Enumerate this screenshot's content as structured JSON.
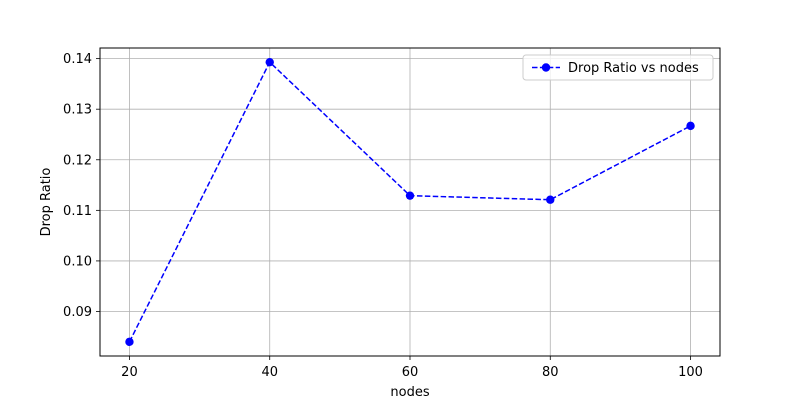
{
  "chart_data": {
    "type": "line",
    "title": "",
    "xlabel": "nodes",
    "ylabel": "Drop Ratio",
    "x": [
      20,
      40,
      60,
      80,
      100
    ],
    "series": [
      {
        "name": "Drop Ratio vs nodes",
        "values": [
          0.084,
          0.1393,
          0.1129,
          0.1121,
          0.1267
        ],
        "color": "#0000ff",
        "line_style": "dashed",
        "marker": "circle"
      }
    ],
    "xlim": [
      15.8,
      104.2
    ],
    "ylim": [
      0.0812,
      0.1421
    ],
    "x_ticks": [
      20,
      40,
      60,
      80,
      100
    ],
    "x_tick_labels": [
      "20",
      "40",
      "60",
      "80",
      "100"
    ],
    "y_ticks": [
      0.09,
      0.1,
      0.11,
      0.12,
      0.13,
      0.14
    ],
    "y_tick_labels": [
      "0.09",
      "0.10",
      "0.11",
      "0.12",
      "0.13",
      "0.14"
    ],
    "grid": true,
    "legend": "top-right"
  }
}
